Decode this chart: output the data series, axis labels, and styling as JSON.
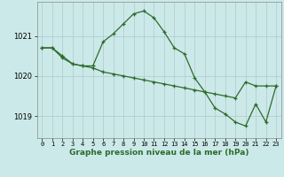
{
  "hours": [
    0,
    1,
    2,
    3,
    4,
    5,
    6,
    7,
    8,
    9,
    10,
    11,
    12,
    13,
    14,
    15,
    16,
    17,
    18,
    19,
    20,
    21,
    22,
    23
  ],
  "series1": [
    1020.7,
    1020.7,
    1020.5,
    1020.3,
    1020.25,
    1020.25,
    1020.85,
    1021.05,
    1021.3,
    1021.55,
    1021.62,
    1021.45,
    1021.1,
    1020.7,
    1020.55,
    1019.95,
    1019.6,
    1019.2,
    1019.05,
    1018.85,
    1018.75,
    1019.3,
    1018.85,
    1019.75
  ],
  "series2": [
    1020.7,
    1020.7,
    1020.45,
    1020.3,
    1020.25,
    1020.2,
    1020.1,
    1020.05,
    1020.0,
    1019.95,
    1019.9,
    1019.85,
    1019.8,
    1019.75,
    1019.7,
    1019.65,
    1019.6,
    1019.55,
    1019.5,
    1019.45,
    1019.85,
    1019.75,
    1019.75,
    1019.75
  ],
  "line_color": "#2d6b2d",
  "bg_color": "#cce9e9",
  "grid_color": "#b0c8c8",
  "xlabel": "Graphe pression niveau de la mer (hPa)",
  "yticks": [
    1019,
    1020,
    1021
  ],
  "xlim": [
    -0.5,
    23.5
  ],
  "ylim": [
    1018.45,
    1021.85
  ]
}
